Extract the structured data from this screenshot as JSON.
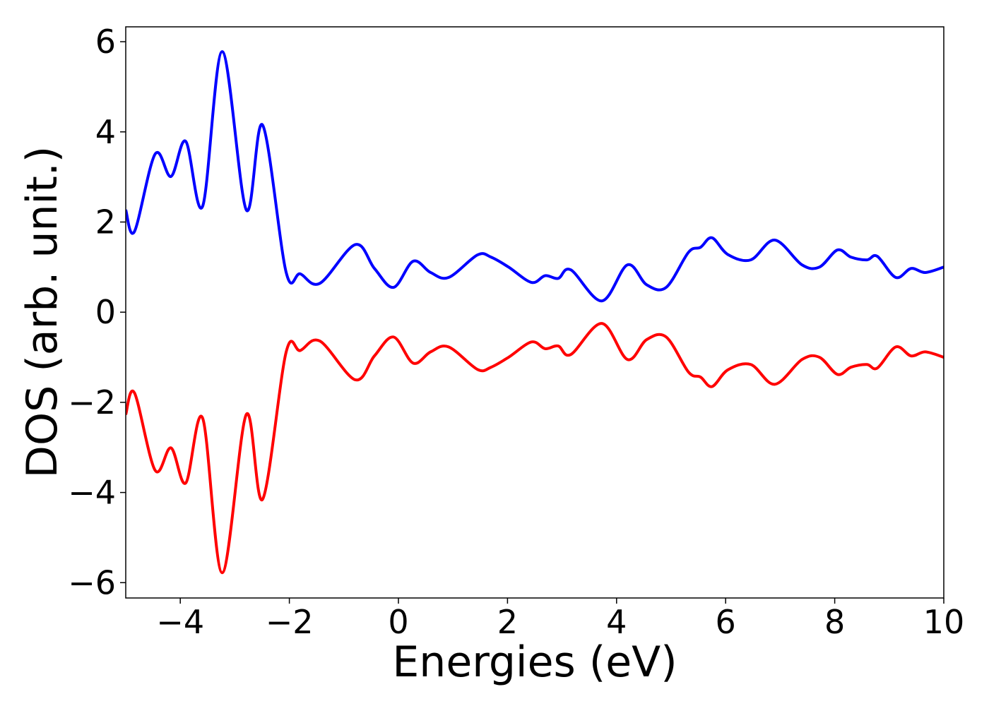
{
  "chart_data": {
    "type": "line",
    "xlabel": "Energies (eV)",
    "ylabel": "DOS (arb. unit.)",
    "x": [
      -5,
      -4.84,
      -4.46,
      -4.17,
      -3.9,
      -3.59,
      -3.23,
      -2.79,
      -2.49,
      -2.06,
      -1.8,
      -1.44,
      -0.79,
      -0.44,
      -0.09,
      0.27,
      0.59,
      0.92,
      1.45,
      1.7,
      2.02,
      2.44,
      2.69,
      2.93,
      3.16,
      3.73,
      4.2,
      4.55,
      4.91,
      5.32,
      5.54,
      5.75,
      6.04,
      6.46,
      6.9,
      7.4,
      7.72,
      8.05,
      8.3,
      8.59,
      8.78,
      9.12,
      9.4,
      9.66,
      10
    ],
    "series": [
      {
        "color": "#0000ff",
        "values": [
          2.27,
          1.79,
          3.51,
          3.01,
          3.79,
          2.35,
          5.78,
          2.27,
          4.15,
          0.89,
          0.85,
          0.64,
          1.5,
          0.97,
          0.55,
          1.13,
          0.88,
          0.77,
          1.27,
          1.22,
          1.0,
          0.66,
          0.81,
          0.75,
          0.94,
          0.25,
          1.05,
          0.61,
          0.55,
          1.33,
          1.44,
          1.65,
          1.28,
          1.16,
          1.6,
          1.05,
          1.0,
          1.38,
          1.22,
          1.16,
          1.24,
          0.77,
          0.97,
          0.88,
          1.0
        ]
      },
      {
        "color": "#ff0000",
        "values": [
          -2.27,
          -1.79,
          -3.51,
          -3.01,
          -3.79,
          -2.35,
          -5.78,
          -2.27,
          -4.15,
          -0.89,
          -0.85,
          -0.64,
          -1.5,
          -0.97,
          -0.55,
          -1.13,
          -0.88,
          -0.77,
          -1.27,
          -1.22,
          -1.0,
          -0.66,
          -0.81,
          -0.75,
          -0.94,
          -0.25,
          -1.05,
          -0.61,
          -0.55,
          -1.33,
          -1.44,
          -1.65,
          -1.28,
          -1.16,
          -1.6,
          -1.05,
          -1.0,
          -1.38,
          -1.22,
          -1.16,
          -1.24,
          -0.77,
          -0.97,
          -0.88,
          -1.0
        ]
      }
    ],
    "xlim": [
      -5,
      10
    ],
    "xticks": [
      {
        "value": -4,
        "label": "−4"
      },
      {
        "value": -2,
        "label": "−2"
      },
      0,
      2,
      4,
      6,
      8,
      10
    ],
    "ylim": [
      -6.34,
      6.33
    ],
    "yticks": [
      {
        "value": -6,
        "label": "−6"
      },
      {
        "value": -4,
        "label": "−4"
      },
      {
        "value": -2,
        "label": "−2"
      },
      0,
      2,
      4,
      6
    ],
    "grid": false
  }
}
